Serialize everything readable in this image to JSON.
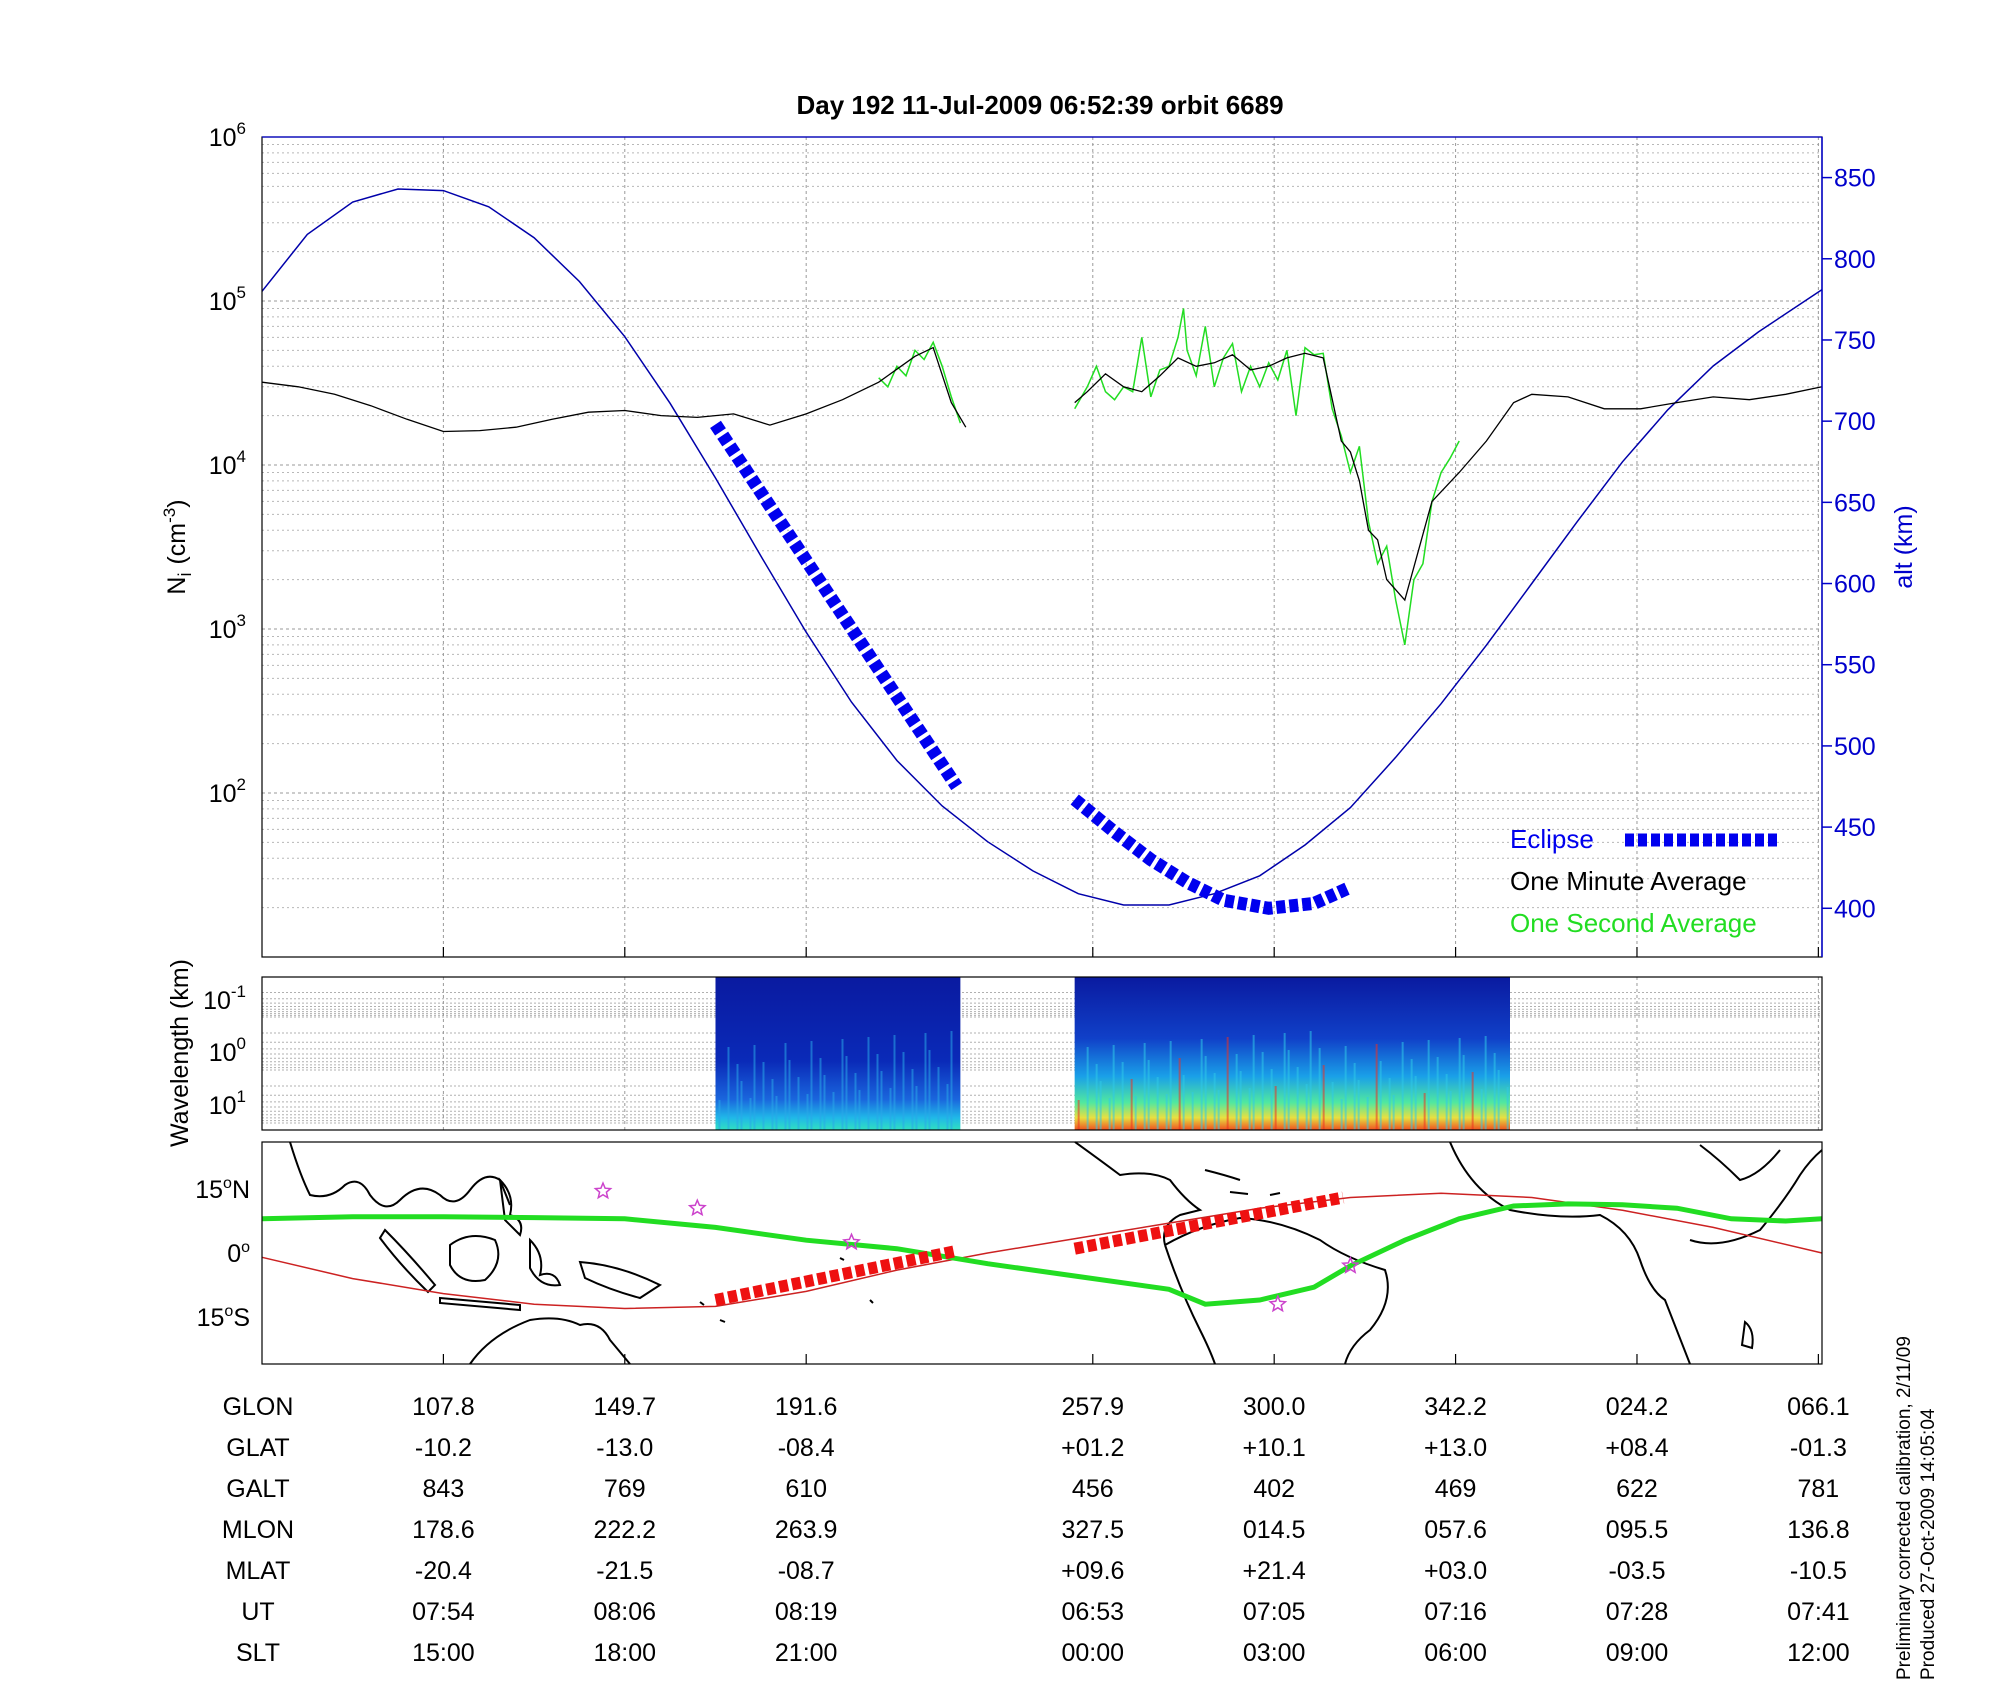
{
  "title": "Day 192  11-Jul-2009 06:52:39   orbit 6689",
  "colors": {
    "altitude": "#0000aa",
    "eclipse": "#0000ee",
    "minute": "#000000",
    "second": "#22dd22",
    "path": "#22dd22",
    "red_eclipse": "#ee1111",
    "dip_equator": "#cc2222",
    "star": "#cc44cc",
    "spectrogram_bg": "#0a1aa0"
  },
  "chart_data": [
    {
      "id": "density",
      "type": "line",
      "ylabel": "N_i (cm^-3)",
      "ylabel_base": "N",
      "ylabel_sub": "i",
      "ylabel_unit": "(cm",
      "ylabel_sup": "-3",
      "ylabel_close": ")",
      "y_scale": "log",
      "ylim": [
        10,
        1000000
      ],
      "y_ticks": [
        {
          "value": 100,
          "base": "10",
          "exp": "2"
        },
        {
          "value": 1000,
          "base": "10",
          "exp": "3"
        },
        {
          "value": 10000,
          "base": "10",
          "exp": "4"
        },
        {
          "value": 100000,
          "base": "10",
          "exp": "5"
        },
        {
          "value": 1000000,
          "base": "10",
          "exp": "6"
        }
      ],
      "y2label": "alt (km)",
      "y2lim": [
        370,
        875
      ],
      "y2_ticks": [
        400,
        450,
        500,
        550,
        600,
        650,
        700,
        750,
        800,
        850
      ],
      "xlim": [
        0,
        8.6
      ],
      "x_ticks": [
        1,
        2,
        3,
        4.58,
        5.58,
        6.58,
        7.58,
        8.58
      ],
      "grid": true,
      "legend_position": "bottom-right",
      "legend": [
        "Eclipse",
        "One Minute Average",
        "One Second Average"
      ],
      "series": [
        {
          "key": "altitude",
          "axis": "right",
          "x": [
            0,
            0.25,
            0.5,
            0.75,
            1.0,
            1.25,
            1.5,
            1.75,
            2.0,
            2.25,
            2.5,
            2.75,
            3.0,
            3.25,
            3.5,
            3.75,
            4.0,
            4.25,
            4.5,
            4.75,
            5.0,
            5.25,
            5.5,
            5.75,
            6.0,
            6.25,
            6.5,
            6.75,
            7.0,
            7.25,
            7.5,
            7.75,
            8.0,
            8.25,
            8.6
          ],
          "values": [
            780,
            815,
            835,
            843,
            842,
            832,
            813,
            786,
            752,
            711,
            665,
            617,
            570,
            527,
            491,
            463,
            441,
            423,
            409,
            402,
            402,
            409,
            420,
            439,
            462,
            493,
            526,
            562,
            600,
            638,
            675,
            707,
            734,
            755,
            781
          ]
        },
        {
          "key": "minute",
          "axis": "left",
          "segments": [
            {
              "x": [
                0,
                0.2,
                0.4,
                0.6,
                0.8,
                1.0,
                1.2,
                1.4,
                1.6,
                1.8,
                2.0,
                2.2,
                2.4,
                2.6,
                2.8,
                3.0,
                3.2,
                3.4,
                3.6,
                3.7,
                3.8,
                3.88
              ],
              "values": [
                32000,
                30000,
                27000,
                23000,
                19000,
                16000,
                16200,
                17000,
                19000,
                21000,
                21500,
                20000,
                19500,
                20500,
                17500,
                20500,
                25000,
                32000,
                46000,
                52000,
                24000,
                17000
              ]
            },
            {
              "x": [
                4.48,
                4.55,
                4.65,
                4.75,
                4.85,
                4.95,
                5.05,
                5.15,
                5.25,
                5.35,
                5.45,
                5.55,
                5.65,
                5.75,
                5.85,
                5.95,
                6.0,
                6.05,
                6.1,
                6.15,
                6.2,
                6.3,
                6.45,
                6.6,
                6.75,
                6.9,
                7.0,
                7.2,
                7.4,
                7.6,
                7.8,
                8.0,
                8.2,
                8.4,
                8.6
              ],
              "values": [
                24000,
                28000,
                36000,
                30000,
                28000,
                35000,
                45000,
                40000,
                42000,
                47000,
                38000,
                40000,
                45000,
                48000,
                45000,
                14000,
                12000,
                8000,
                4000,
                3500,
                2000,
                1500,
                6000,
                9000,
                14000,
                24000,
                27000,
                26000,
                22000,
                22000,
                24000,
                26000,
                25000,
                27000,
                30000
              ]
            }
          ]
        },
        {
          "key": "second",
          "axis": "left",
          "segments": [
            {
              "x": [
                3.4,
                3.45,
                3.5,
                3.55,
                3.6,
                3.65,
                3.7,
                3.75,
                3.8,
                3.85
              ],
              "values": [
                34000,
                30000,
                40000,
                35000,
                50000,
                44000,
                56000,
                40000,
                26000,
                18000
              ]
            },
            {
              "x": [
                4.48,
                4.55,
                4.6,
                4.65,
                4.7,
                4.75,
                4.8,
                4.85,
                4.9,
                4.95,
                5.0,
                5.05,
                5.08,
                5.1,
                5.15,
                5.2,
                5.25,
                5.3,
                5.35,
                5.4,
                5.45,
                5.5,
                5.55,
                5.6,
                5.65,
                5.7,
                5.75,
                5.8,
                5.85,
                5.9,
                5.95,
                6.0,
                6.05,
                6.1,
                6.15,
                6.2,
                6.25,
                6.3,
                6.35,
                6.4,
                6.45,
                6.5,
                6.55,
                6.6
              ],
              "values": [
                22000,
                30000,
                40000,
                28000,
                25000,
                30000,
                28000,
                60000,
                26000,
                38000,
                40000,
                60000,
                90000,
                50000,
                35000,
                70000,
                30000,
                45000,
                55000,
                28000,
                40000,
                30000,
                42000,
                33000,
                50000,
                20000,
                52000,
                47000,
                48000,
                22000,
                15000,
                9000,
                13000,
                4500,
                2500,
                3200,
                1500,
                800,
                2000,
                2500,
                6000,
                9000,
                11000,
                14000
              ]
            }
          ]
        }
      ],
      "eclipse": [
        {
          "x": [
            2.5,
            3.83
          ],
          "alt": [
            698,
            475
          ]
        },
        {
          "x": [
            4.48,
            4.7,
            4.9,
            5.1,
            5.3,
            5.55,
            5.8,
            6.0
          ],
          "alt": [
            467,
            447,
            430,
            416,
            405,
            400,
            403,
            413
          ]
        }
      ]
    },
    {
      "id": "spectrogram",
      "type": "heatmap",
      "ylabel": "Wavelength (km)",
      "y_scale": "log",
      "y_ticks": [
        {
          "base": "10",
          "exp": "-1"
        },
        {
          "base": "10",
          "exp": "0"
        },
        {
          "base": "10",
          "exp": "1"
        }
      ],
      "xlim": [
        0,
        8.6
      ],
      "blocks": [
        {
          "x": [
            2.5,
            3.85
          ],
          "intensity": "low"
        },
        {
          "x": [
            4.48,
            6.88
          ],
          "intensity": "high"
        }
      ]
    },
    {
      "id": "map",
      "type": "line",
      "y_ticks": [
        {
          "value": 15,
          "label": "15",
          "suffix": "N"
        },
        {
          "value": 0,
          "label": "0",
          "suffix": ""
        },
        {
          "value": -15,
          "label": "15",
          "suffix": "S"
        }
      ],
      "ylim": [
        -26,
        26
      ],
      "xlim": [
        0,
        8.6
      ],
      "path": {
        "x": [
          0,
          0.5,
          1.0,
          1.5,
          2.0,
          2.5,
          3.0,
          3.5,
          4.0,
          4.5,
          5.0,
          5.2,
          5.5,
          5.8,
          6.0,
          6.3,
          6.6,
          6.9,
          7.2,
          7.5,
          7.8,
          8.1,
          8.4,
          8.6
        ],
        "lat": [
          8,
          8.5,
          8.5,
          8.3,
          8,
          6,
          3,
          1,
          -2.5,
          -5.5,
          -8.5,
          -12,
          -11,
          -8,
          -3,
          3,
          8,
          11,
          11.5,
          11.3,
          10.5,
          8,
          7.5,
          8
        ]
      },
      "dip_equator": {
        "x": [
          0,
          0.5,
          1.0,
          1.5,
          2.0,
          2.5,
          3.0,
          3.5,
          4.0,
          4.5,
          5.0,
          5.5,
          6.0,
          6.5,
          7.0,
          7.5,
          8.0,
          8.6
        ],
        "lat": [
          -1,
          -6,
          -9.5,
          -12,
          -13,
          -12.5,
          -9,
          -4,
          0,
          3.5,
          7,
          10.5,
          13,
          14,
          13,
          10,
          6,
          0
        ]
      },
      "red_segments": [
        {
          "x": [
            2.5,
            3.83
          ],
          "lat": [
            -11,
            0.5
          ]
        },
        {
          "x": [
            4.48,
            5.96
          ],
          "lat": [
            1,
            13
          ]
        }
      ],
      "stars": [
        {
          "x": 1.88,
          "lat": 14.5
        },
        {
          "x": 2.4,
          "lat": 10.5
        },
        {
          "x": 3.25,
          "lat": 2.5
        },
        {
          "x": 5.6,
          "lat": -12
        },
        {
          "x": 6.0,
          "lat": -3
        }
      ]
    }
  ],
  "table": {
    "rows": [
      {
        "label": "GLON",
        "values": [
          "107.8",
          "149.7",
          "191.6",
          "257.9",
          "300.0",
          "342.2",
          "024.2",
          "066.1"
        ]
      },
      {
        "label": "GLAT",
        "values": [
          "-10.2",
          "-13.0",
          "-08.4",
          "+01.2",
          "+10.1",
          "+13.0",
          "+08.4",
          "-01.3"
        ]
      },
      {
        "label": "GALT",
        "values": [
          "843",
          "769",
          "610",
          "456",
          "402",
          "469",
          "622",
          "781"
        ]
      },
      {
        "label": "MLON",
        "values": [
          "178.6",
          "222.2",
          "263.9",
          "327.5",
          "014.5",
          "057.6",
          "095.5",
          "136.8"
        ]
      },
      {
        "label": "MLAT",
        "values": [
          "-20.4",
          "-21.5",
          "-08.7",
          "+09.6",
          "+21.4",
          "+03.0",
          "-03.5",
          "-10.5"
        ]
      },
      {
        "label": "UT",
        "values": [
          "07:54",
          "08:06",
          "08:19",
          "06:53",
          "07:05",
          "07:16",
          "07:28",
          "07:41"
        ]
      },
      {
        "label": "SLT",
        "values": [
          "15:00",
          "18:00",
          "21:00",
          "00:00",
          "03:00",
          "06:00",
          "09:00",
          "12:00"
        ]
      }
    ]
  },
  "footer": {
    "line1": "Preliminary corrected calibration, 2/11/09",
    "line2": "Produced 27-Oct-2009 14:05:04"
  }
}
